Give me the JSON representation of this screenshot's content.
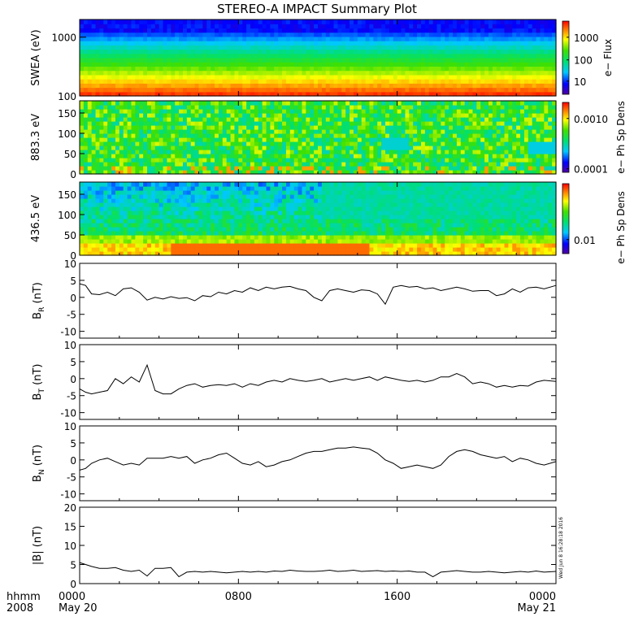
{
  "title": "STEREO-A IMPACT Summary Plot",
  "footer": {
    "time_label": "hhmm",
    "year_label": "2008",
    "date_start": "May 20",
    "date_end": "May 21",
    "timestamp": "Wed Jun 8 16:28:18 2016"
  },
  "colors": {
    "line": "#000000",
    "background": "#ffffff"
  },
  "chart_data": [
    {
      "type": "heatmap",
      "ylabel": "SWEA (eV)",
      "y_scale": "log",
      "y_ticks": [
        "100",
        "1000"
      ],
      "colorbar_label": "e− Flux",
      "colorbar_ticks": [
        "10",
        "100",
        "1000"
      ],
      "description_values": {
        "energy_min_eV": 100,
        "energy_max_eV": 2000
      }
    },
    {
      "type": "heatmap",
      "ylabel": "883.3 eV",
      "ylim": [
        0,
        180
      ],
      "y_ticks": [
        "0",
        "50",
        "100",
        "150"
      ],
      "colorbar_label": "e− Ph Sp Dens",
      "colorbar_ticks": [
        "0.0001",
        "0.0010"
      ]
    },
    {
      "type": "heatmap",
      "ylabel": "436.5 eV",
      "ylim": [
        0,
        180
      ],
      "y_ticks": [
        "0",
        "50",
        "100",
        "150"
      ],
      "colorbar_label": "e− Ph Sp Dens",
      "colorbar_ticks": [
        "0.01"
      ]
    },
    {
      "type": "line",
      "ylabel": "B",
      "ylabel_sub": "R",
      "ylabel_unit": " (nT)",
      "ylim": [
        -12,
        10
      ],
      "y_ticks": [
        "-10",
        "-5",
        "0",
        "5",
        "10"
      ],
      "x_hours": [
        0,
        0.3,
        0.6,
        1,
        1.4,
        1.8,
        2.2,
        2.6,
        3,
        3.4,
        3.8,
        4.2,
        4.6,
        5,
        5.4,
        5.8,
        6.2,
        6.6,
        7,
        7.4,
        7.8,
        8.2,
        8.6,
        9,
        9.4,
        9.8,
        10.2,
        10.6,
        11,
        11.4,
        11.8,
        12.2,
        12.6,
        13,
        13.4,
        13.8,
        14.2,
        14.6,
        15,
        15.4,
        15.8,
        16.2,
        16.6,
        17,
        17.4,
        17.8,
        18.2,
        18.6,
        19,
        19.4,
        19.8,
        20.2,
        20.6,
        21,
        21.4,
        21.8,
        22.2,
        22.6,
        23,
        23.4,
        24
      ],
      "values": [
        4,
        3.5,
        1,
        0.8,
        1.5,
        0.5,
        2.5,
        2.8,
        1.5,
        -0.8,
        0,
        -0.5,
        0.2,
        -0.3,
        -0.1,
        -1,
        0.5,
        0.2,
        1.5,
        1,
        2,
        1.5,
        2.8,
        2,
        3,
        2.5,
        3,
        3.2,
        2.5,
        2,
        0,
        -1,
        2,
        2.5,
        2,
        1.5,
        2.2,
        2,
        1,
        -2,
        3,
        3.5,
        3,
        3.2,
        2.5,
        2.8,
        2,
        2.5,
        3,
        2.5,
        1.8,
        2,
        2,
        0.5,
        1,
        2.5,
        1.5,
        2.8,
        3,
        2.5,
        3.5
      ]
    },
    {
      "type": "line",
      "ylabel": "B",
      "ylabel_sub": "T",
      "ylabel_unit": " (nT)",
      "ylim": [
        -12,
        10
      ],
      "y_ticks": [
        "-10",
        "-5",
        "0",
        "5",
        "10"
      ],
      "x_hours": [
        0,
        0.3,
        0.6,
        1,
        1.4,
        1.8,
        2.2,
        2.6,
        3,
        3.4,
        3.8,
        4.2,
        4.6,
        5,
        5.4,
        5.8,
        6.2,
        6.6,
        7,
        7.4,
        7.8,
        8.2,
        8.6,
        9,
        9.4,
        9.8,
        10.2,
        10.6,
        11,
        11.4,
        11.8,
        12.2,
        12.6,
        13,
        13.4,
        13.8,
        14.2,
        14.6,
        15,
        15.4,
        15.8,
        16.2,
        16.6,
        17,
        17.4,
        17.8,
        18.2,
        18.6,
        19,
        19.4,
        19.8,
        20.2,
        20.6,
        21,
        21.4,
        21.8,
        22.2,
        22.6,
        23,
        23.4,
        24
      ],
      "values": [
        -3,
        -4,
        -4.5,
        -4,
        -3.5,
        0,
        -1.5,
        0.5,
        -1,
        4,
        -3.5,
        -4.5,
        -4.5,
        -3,
        -2,
        -1.5,
        -2.5,
        -2,
        -1.8,
        -2,
        -1.5,
        -2.5,
        -1.5,
        -2,
        -1,
        -0.5,
        -1,
        0,
        -0.5,
        -0.8,
        -0.5,
        0,
        -1,
        -0.5,
        0,
        -0.5,
        0,
        0.5,
        -0.5,
        0.5,
        0,
        -0.5,
        -0.8,
        -0.5,
        -1,
        -0.5,
        0.5,
        0.5,
        1.5,
        0.5,
        -1.5,
        -1,
        -1.5,
        -2.5,
        -2,
        -2.5,
        -2,
        -2.2,
        -1,
        -0.5,
        -0.8
      ]
    },
    {
      "type": "line",
      "ylabel": "B",
      "ylabel_sub": "N",
      "ylabel_unit": " (nT)",
      "ylim": [
        -12,
        10
      ],
      "y_ticks": [
        "-10",
        "-5",
        "0",
        "5",
        "10"
      ],
      "x_hours": [
        0,
        0.3,
        0.6,
        1,
        1.4,
        1.8,
        2.2,
        2.6,
        3,
        3.4,
        3.8,
        4.2,
        4.6,
        5,
        5.4,
        5.8,
        6.2,
        6.6,
        7,
        7.4,
        7.8,
        8.2,
        8.6,
        9,
        9.4,
        9.8,
        10.2,
        10.6,
        11,
        11.4,
        11.8,
        12.2,
        12.6,
        13,
        13.4,
        13.8,
        14.2,
        14.6,
        15,
        15.4,
        15.8,
        16.2,
        16.6,
        17,
        17.4,
        17.8,
        18.2,
        18.6,
        19,
        19.4,
        19.8,
        20.2,
        20.6,
        21,
        21.4,
        21.8,
        22.2,
        22.6,
        23,
        23.4,
        24
      ],
      "values": [
        -3,
        -2.5,
        -1,
        0,
        0.5,
        -0.5,
        -1.5,
        -1,
        -1.5,
        0.5,
        0.5,
        0.5,
        1,
        0.5,
        1,
        -1,
        0,
        0.5,
        1.5,
        2,
        0.5,
        -1,
        -1.5,
        -0.5,
        -2,
        -1.5,
        -0.5,
        0,
        1,
        2,
        2.5,
        2.5,
        3,
        3.5,
        3.5,
        3.8,
        3.5,
        3.2,
        2,
        0,
        -1,
        -2.5,
        -2,
        -1.5,
        -2,
        -2.5,
        -1.5,
        1,
        2.5,
        3,
        2.5,
        1.5,
        1,
        0.5,
        1,
        -0.5,
        0.5,
        0,
        -1,
        -1.5,
        -0.5
      ]
    },
    {
      "type": "line",
      "ylabel": "|B|",
      "ylabel_unit": " (nT)",
      "ylim": [
        0,
        20
      ],
      "y_ticks": [
        "0",
        "5",
        "10",
        "15",
        "20"
      ],
      "x_hours": [
        0,
        0.3,
        0.6,
        1,
        1.4,
        1.8,
        2.2,
        2.6,
        3,
        3.4,
        3.8,
        4.2,
        4.6,
        5,
        5.4,
        5.8,
        6.2,
        6.6,
        7,
        7.4,
        7.8,
        8.2,
        8.6,
        9,
        9.4,
        9.8,
        10.2,
        10.6,
        11,
        11.4,
        11.8,
        12.2,
        12.6,
        13,
        13.4,
        13.8,
        14.2,
        14.6,
        15,
        15.4,
        15.8,
        16.2,
        16.6,
        17,
        17.4,
        17.8,
        18.2,
        18.6,
        19,
        19.4,
        19.8,
        20.2,
        20.6,
        21,
        21.4,
        21.8,
        22.2,
        22.6,
        23,
        23.4,
        24
      ],
      "values": [
        5.5,
        5,
        4.5,
        4,
        4,
        4.2,
        3.5,
        3.2,
        3.5,
        2,
        4,
        4,
        4.2,
        1.8,
        3,
        3.2,
        3,
        3.2,
        3,
        2.8,
        3,
        3.2,
        3,
        3.2,
        3,
        3.3,
        3.2,
        3.5,
        3.3,
        3.2,
        3.2,
        3.3,
        3.5,
        3.2,
        3.3,
        3.5,
        3.2,
        3.3,
        3.4,
        3.2,
        3.3,
        3.2,
        3.3,
        3,
        3,
        1.8,
        3,
        3.2,
        3.4,
        3.2,
        3,
        3,
        3.2,
        3,
        2.8,
        3,
        3.2,
        3,
        3.3,
        3,
        3.2
      ]
    },
    {
      "type": "axis",
      "xlim_hours": [
        0,
        24
      ],
      "x_ticks": [
        {
          "hour": 0,
          "label": "0000"
        },
        {
          "hour": 8,
          "label": "0800"
        },
        {
          "hour": 16,
          "label": "1600"
        },
        {
          "hour": 24,
          "label": "0000"
        }
      ]
    }
  ]
}
